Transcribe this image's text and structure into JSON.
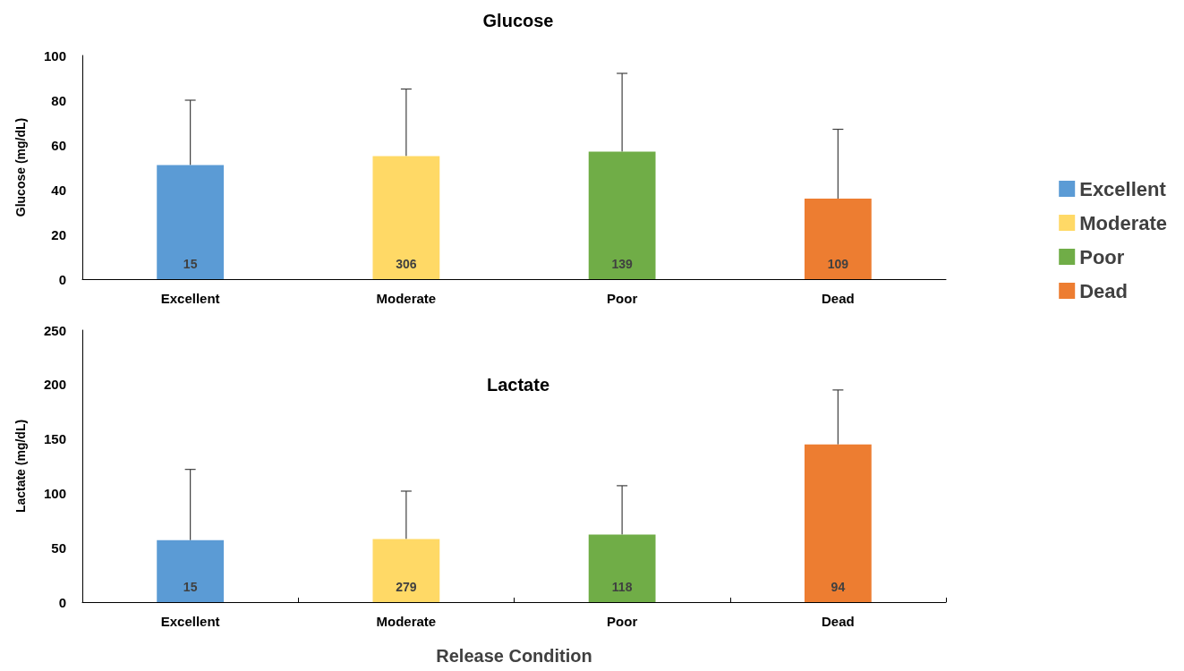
{
  "chart_data": [
    {
      "type": "bar",
      "title": "Glucose",
      "ylabel": "Glucose (mg/dL)",
      "categories": [
        "Excellent",
        "Moderate",
        "Poor",
        "Dead"
      ],
      "series": [
        {
          "name": "Excellent",
          "color": "#5b9bd5",
          "values": [
            51,
            null,
            null,
            null
          ],
          "errors": [
            [
              51,
              80
            ],
            null,
            null,
            null
          ]
        },
        {
          "name": "Moderate",
          "color": "#ffd966",
          "values": [
            null,
            55,
            null,
            null
          ],
          "errors": [
            null,
            [
              55,
              85
            ],
            null,
            null
          ]
        },
        {
          "name": "Poor",
          "color": "#70ad47",
          "values": [
            null,
            null,
            57,
            null
          ],
          "errors": [
            null,
            null,
            [
              57,
              92
            ],
            null
          ]
        },
        {
          "name": "Dead",
          "color": "#ed7d31",
          "values": [
            null,
            null,
            null,
            36
          ],
          "errors": [
            null,
            null,
            null,
            [
              36,
              67
            ]
          ]
        }
      ],
      "annotations": [
        "15",
        "306",
        "139",
        "109"
      ],
      "ylim": [
        0,
        100
      ],
      "yticks": [
        0,
        20,
        40,
        60,
        80,
        100
      ],
      "legend": "right"
    },
    {
      "type": "bar",
      "title": "Lactate",
      "ylabel": "Lactate (mg/dL)",
      "xlabel": "Release Condition",
      "categories": [
        "Excellent",
        "Moderate",
        "Poor",
        "Dead"
      ],
      "values": [
        57,
        58,
        62,
        145
      ],
      "colors": [
        "#5b9bd5",
        "#ffd966",
        "#70ad47",
        "#ed7d31"
      ],
      "errors": [
        [
          57,
          122
        ],
        [
          58,
          102
        ],
        [
          62,
          107
        ],
        [
          145,
          195
        ]
      ],
      "annotations": [
        "15",
        "279",
        "118",
        "94"
      ],
      "ylim": [
        0,
        250
      ],
      "yticks": [
        0,
        50,
        100,
        150,
        200,
        250
      ]
    }
  ]
}
